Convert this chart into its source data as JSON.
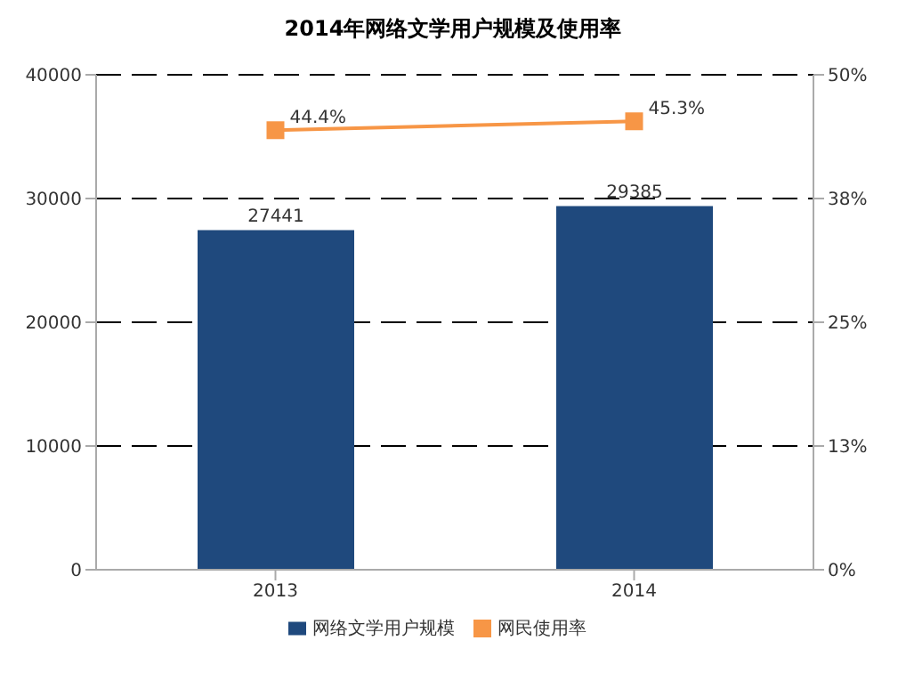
{
  "chart_data": {
    "type": "bar",
    "title": "2014年网络文学用户规模及使用率",
    "categories": [
      "2013",
      "2014"
    ],
    "series": [
      {
        "name": "网络文学用户规模",
        "color": "#1f497d",
        "values": [
          27441,
          29385
        ],
        "value_labels": [
          "27441",
          "29385"
        ]
      },
      {
        "name": "网民使用率",
        "type": "line",
        "axis": "y2",
        "color": "#f79646",
        "values": [
          44.4,
          45.3
        ],
        "value_labels": [
          "44.4%",
          "45.3%"
        ],
        "marker": "square"
      }
    ],
    "ylim": [
      0,
      40000
    ],
    "yticks": [
      0,
      10000,
      20000,
      30000,
      40000
    ],
    "y2lim": [
      0,
      50
    ],
    "y2ticks": [
      {
        "value": 0,
        "label": "0%"
      },
      {
        "value": 12.5,
        "label": "13%"
      },
      {
        "value": 25,
        "label": "25%"
      },
      {
        "value": 37.5,
        "label": "38%"
      },
      {
        "value": 50,
        "label": "50%"
      }
    ],
    "grid": "y",
    "line_style": "solid",
    "legend": "bottom"
  }
}
